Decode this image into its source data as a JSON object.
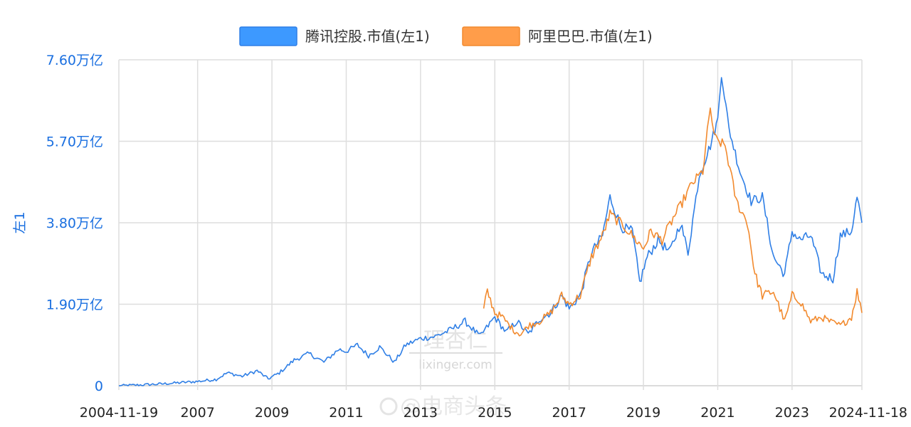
{
  "chart_data": {
    "type": "line",
    "legend_position": "top-center",
    "grid": true,
    "ylabel": "左1",
    "y_ticks": [
      "0",
      "1.90万亿",
      "3.80万亿",
      "5.70万亿",
      "7.60万亿"
    ],
    "ylim": [
      0,
      7.6
    ],
    "y_unit": "万亿",
    "x_ticks": [
      {
        "label": "2004-11-19",
        "year": 2004.88
      },
      {
        "label": "2007",
        "year": 2007.0
      },
      {
        "label": "2009",
        "year": 2009.0
      },
      {
        "label": "2011",
        "year": 2011.0
      },
      {
        "label": "2013",
        "year": 2013.0
      },
      {
        "label": "2015",
        "year": 2015.0
      },
      {
        "label": "2017",
        "year": 2017.0
      },
      {
        "label": "2019",
        "year": 2019.0
      },
      {
        "label": "2021",
        "year": 2021.0
      },
      {
        "label": "2023",
        "year": 2023.0
      },
      {
        "label": "2024-11-18",
        "year": 2024.88
      }
    ],
    "xlim": [
      2004.88,
      2024.88
    ],
    "series": [
      {
        "name": "腾讯控股.市值(左1)",
        "color": "#2f7fe6",
        "legend_fill": "#3d99ff",
        "x": [
          2004.88,
          2005.5,
          2006.0,
          2006.5,
          2007.0,
          2007.5,
          2007.8,
          2008.2,
          2008.6,
          2008.9,
          2009.2,
          2009.6,
          2010.0,
          2010.4,
          2010.8,
          2011.0,
          2011.3,
          2011.6,
          2011.9,
          2012.3,
          2012.6,
          2013.0,
          2013.4,
          2013.8,
          2014.2,
          2014.6,
          2015.0,
          2015.3,
          2015.6,
          2015.9,
          2016.2,
          2016.5,
          2016.8,
          2017.0,
          2017.3,
          2017.6,
          2017.9,
          2018.1,
          2018.4,
          2018.7,
          2018.9,
          2019.1,
          2019.4,
          2019.7,
          2020.0,
          2020.2,
          2020.5,
          2020.8,
          2021.0,
          2021.1,
          2021.3,
          2021.6,
          2021.9,
          2022.2,
          2022.5,
          2022.8,
          2023.0,
          2023.2,
          2023.5,
          2023.8,
          2024.1,
          2024.3,
          2024.6,
          2024.75,
          2024.88
        ],
        "values": [
          0.0,
          0.02,
          0.04,
          0.07,
          0.1,
          0.15,
          0.3,
          0.22,
          0.35,
          0.16,
          0.3,
          0.6,
          0.75,
          0.55,
          0.85,
          0.8,
          0.95,
          0.7,
          0.9,
          0.55,
          0.95,
          1.1,
          1.15,
          1.3,
          1.5,
          1.15,
          1.6,
          1.25,
          1.5,
          1.2,
          1.55,
          1.7,
          2.1,
          1.8,
          2.1,
          3.1,
          3.5,
          4.4,
          3.7,
          3.6,
          2.4,
          3.0,
          3.4,
          3.1,
          3.8,
          3.1,
          4.9,
          5.6,
          6.2,
          7.3,
          6.0,
          5.0,
          4.3,
          4.4,
          3.0,
          2.6,
          3.6,
          3.4,
          3.5,
          2.6,
          2.5,
          3.5,
          3.6,
          4.4,
          3.8
        ]
      },
      {
        "name": "阿里巴巴.市值(左1)",
        "color": "#f28a2e",
        "legend_fill": "#ff9d4a",
        "x": [
          2014.7,
          2014.8,
          2015.0,
          2015.2,
          2015.5,
          2015.7,
          2015.9,
          2016.2,
          2016.5,
          2016.8,
          2017.0,
          2017.3,
          2017.6,
          2017.9,
          2018.1,
          2018.5,
          2018.8,
          2019.0,
          2019.2,
          2019.5,
          2019.8,
          2020.0,
          2020.3,
          2020.6,
          2020.8,
          2020.9,
          2021.0,
          2021.2,
          2021.5,
          2021.8,
          2022.0,
          2022.2,
          2022.5,
          2022.8,
          2023.0,
          2023.2,
          2023.5,
          2023.8,
          2024.0,
          2024.3,
          2024.6,
          2024.75,
          2024.88
        ],
        "values": [
          1.8,
          2.2,
          1.7,
          1.6,
          1.3,
          1.2,
          1.4,
          1.5,
          1.7,
          2.1,
          1.9,
          2.1,
          3.0,
          3.5,
          4.0,
          3.7,
          3.4,
          3.2,
          3.6,
          3.4,
          3.9,
          4.2,
          4.7,
          5.0,
          6.5,
          5.8,
          5.7,
          5.6,
          4.3,
          3.8,
          2.6,
          2.1,
          2.2,
          1.5,
          2.1,
          2.0,
          1.5,
          1.6,
          1.5,
          1.4,
          1.6,
          2.2,
          1.7
        ]
      }
    ]
  },
  "watermark": {
    "main": "理杏仁",
    "sub": "lixinger.com",
    "weibo": "@电商头条"
  }
}
